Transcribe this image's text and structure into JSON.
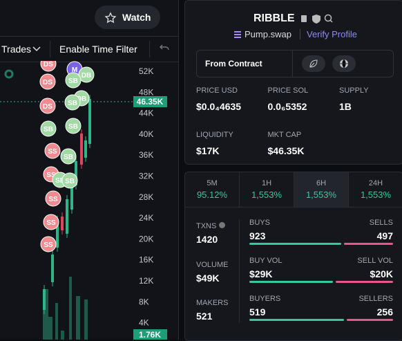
{
  "toolbar": {
    "watch": "Watch",
    "trades": "Trades",
    "time_filter": "Enable Time Filter"
  },
  "chart": {
    "price_axis": [
      "52K",
      "48K",
      "44K",
      "40K",
      "36K",
      "32K",
      "28K",
      "24K",
      "20K",
      "16K",
      "12K",
      "8K",
      "4K"
    ],
    "current_price": "46.35K",
    "volume": "1.76K",
    "markers": [
      "DS",
      "DS",
      "DS",
      "M",
      "DB",
      "SB",
      "DB",
      "SB",
      "SB",
      "SB",
      "SS",
      "SB",
      "SS",
      "SB",
      "SB",
      "SS",
      "SS",
      "SS"
    ]
  },
  "token": {
    "name": "RIBBLE",
    "dex": "Pump.swap",
    "verify": "Verify Profile",
    "source": "From Contract",
    "stats": [
      {
        "label": "PRICE USD",
        "value": "$0.0₄4635"
      },
      {
        "label": "PRICE SOL",
        "value": "0.0₆5352"
      },
      {
        "label": "SUPPLY",
        "value": "1B"
      },
      {
        "label": "LIQUIDITY",
        "value": "$17K"
      },
      {
        "label": "MKT CAP",
        "value": "$46.35K"
      }
    ]
  },
  "activity": {
    "periods": [
      {
        "label": "5M",
        "change": "95.12%"
      },
      {
        "label": "1H",
        "change": "1,553%"
      },
      {
        "label": "6H",
        "change": "1,553%"
      },
      {
        "label": "24H",
        "change": "1,553%"
      }
    ],
    "txns": {
      "label": "TXNS",
      "value": 1420
    },
    "volume": {
      "label": "VOLUME",
      "value": "$49K"
    },
    "makers": {
      "label": "MAKERS",
      "value": 521
    },
    "rows": [
      {
        "left_label": "BUYS",
        "right_label": "SELLS",
        "left": 923,
        "right": 497
      },
      {
        "left_label": "BUY VOL",
        "right_label": "SELL VOL",
        "left": {
          "value": 29000,
          "label": "$29K"
        },
        "right": {
          "value": 20000,
          "label": "$20K"
        }
      },
      {
        "left_label": "BUYERS",
        "right_label": "SELLERS",
        "left": 519,
        "right": 256
      }
    ]
  }
}
